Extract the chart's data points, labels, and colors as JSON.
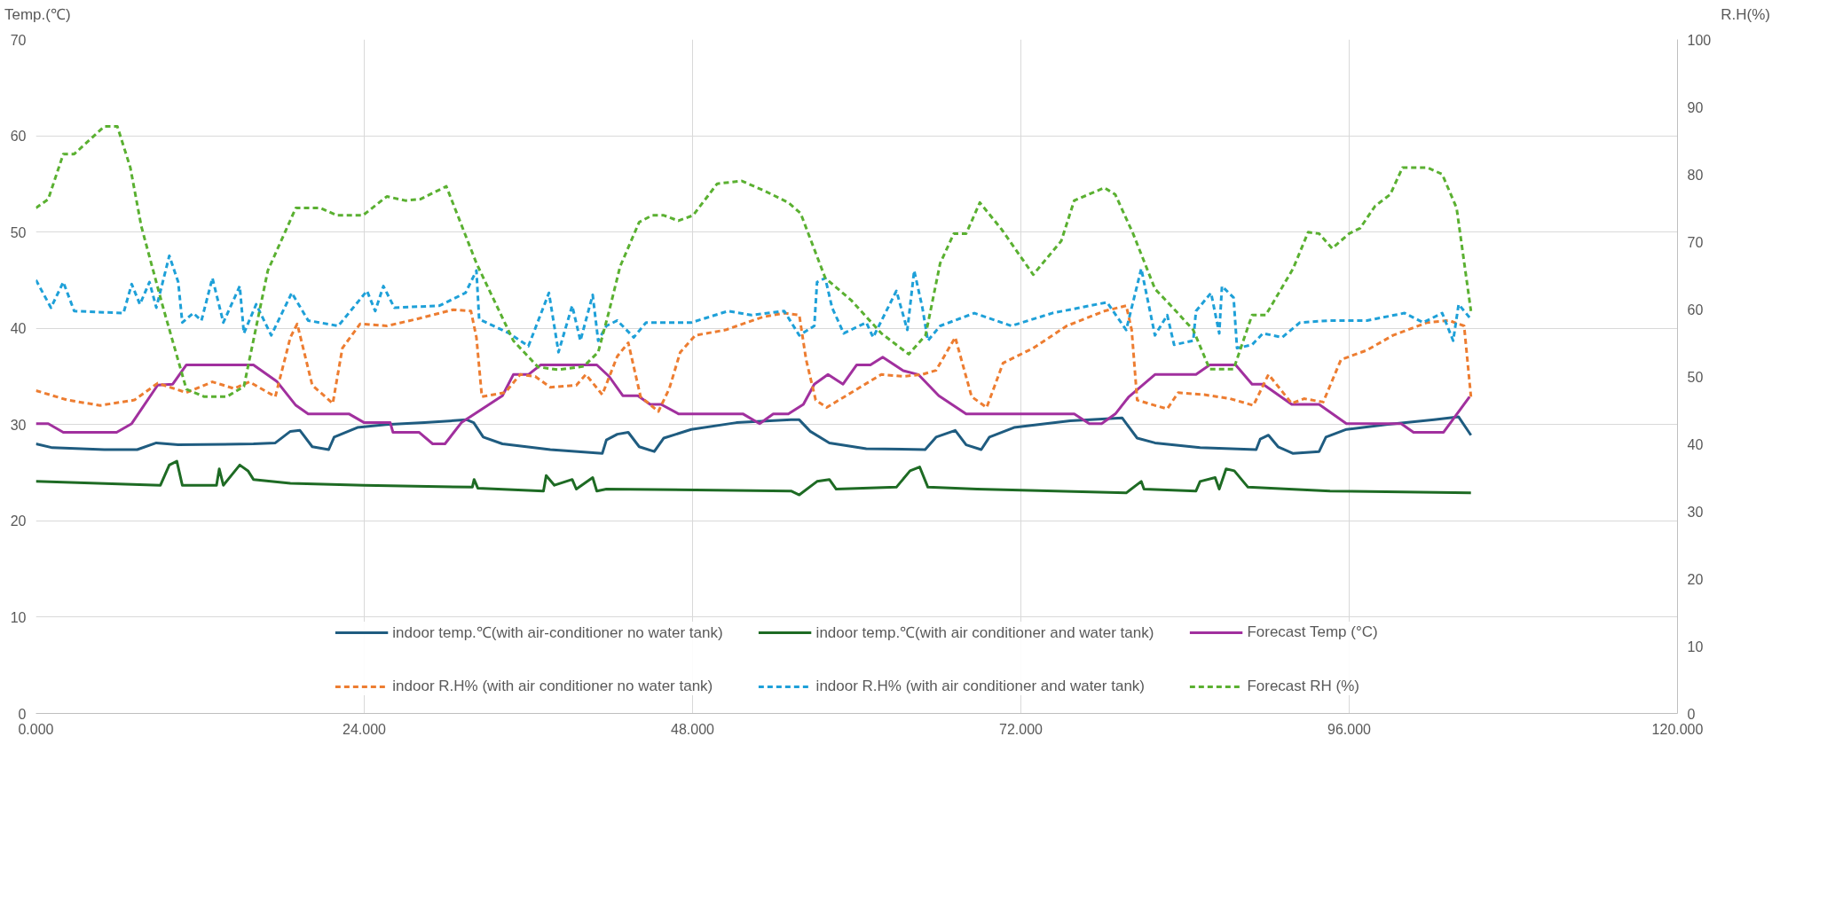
{
  "chart_data": {
    "type": "line",
    "ylabel": "Temp.(℃)",
    "y2label": "R.H(%)",
    "xlim": [
      0,
      120
    ],
    "xticks": [
      {
        "value": 0,
        "label": "0.000"
      },
      {
        "value": 24,
        "label": "24.000"
      },
      {
        "value": 48,
        "label": "48.000"
      },
      {
        "value": 72,
        "label": "72.000"
      },
      {
        "value": 96,
        "label": "96.000"
      },
      {
        "value": 120,
        "label": "120.000"
      }
    ],
    "ylim": [
      0,
      70
    ],
    "yticks": [
      0,
      10,
      20,
      30,
      40,
      50,
      60,
      70
    ],
    "y2lim": [
      0,
      100
    ],
    "y2ticks": [
      0,
      10,
      20,
      30,
      40,
      50,
      60,
      70,
      80,
      90,
      100
    ],
    "grid": true,
    "legend": "bottom",
    "series": [
      {
        "name": "indoor temp.℃(with air-conditioner no water tank)",
        "color": "#1f5c80",
        "line_style": "solid",
        "x": [
          0,
          1.2,
          5.0,
          7.4,
          8.8,
          10.4,
          15.9,
          17.5,
          18.6,
          19.3,
          20.2,
          21.4,
          21.8,
          23.5,
          25.6,
          28.4,
          31.5,
          32.0,
          32.7,
          34.1,
          37.6,
          41.4,
          41.7,
          42.5,
          43.3,
          44.1,
          45.2,
          45.9,
          47.9,
          51.2,
          55.2,
          55.8,
          56.6,
          58.0,
          60.7,
          65.0,
          65.8,
          67.2,
          68.0,
          69.1,
          69.7,
          71.5,
          75.6,
          79.4,
          80.5,
          81.8,
          85.1,
          89.2,
          89.5,
          90.1,
          90.8,
          91.9,
          93.8,
          94.3,
          95.8,
          98.7,
          102.2,
          104.0,
          104.9
        ],
        "values": [
          28.0,
          27.6,
          27.4,
          27.4,
          28.1,
          27.9,
          28.0,
          28.1,
          29.3,
          29.4,
          27.7,
          27.4,
          28.7,
          29.7,
          30.0,
          30.2,
          30.5,
          30.2,
          28.7,
          28.0,
          27.4,
          27.0,
          28.4,
          29.0,
          29.2,
          27.7,
          27.2,
          28.6,
          29.5,
          30.2,
          30.5,
          30.5,
          29.3,
          28.1,
          27.5,
          27.4,
          28.7,
          29.4,
          27.9,
          27.4,
          28.7,
          29.7,
          30.4,
          30.7,
          28.6,
          28.1,
          27.6,
          27.4,
          28.5,
          28.9,
          27.7,
          27.0,
          27.2,
          28.7,
          29.5,
          30.0,
          30.5,
          30.8,
          28.9
        ]
      },
      {
        "name": "indoor temp.℃(with air conditioner and water tank)",
        "color": "#1e6b24",
        "line_style": "solid",
        "x": [
          0,
          9.1,
          9.75,
          10.3,
          10.7,
          13.2,
          13.4,
          13.7,
          14.9,
          15.5,
          15.9,
          18.6,
          24.0,
          31.9,
          32.03,
          32.3,
          37.1,
          37.3,
          37.9,
          39.2,
          39.5,
          40.7,
          41.0,
          41.7,
          55.2,
          55.8,
          57.1,
          58.0,
          58.5,
          62.9,
          63.9,
          64.6,
          65.2,
          68.8,
          79.7,
          80.8,
          81.0,
          84.8,
          85.1,
          86.2,
          86.5,
          87.0,
          87.6,
          88.6,
          94.6,
          104.9
        ],
        "values": [
          24.1,
          23.7,
          25.8,
          26.2,
          23.7,
          23.7,
          25.4,
          23.7,
          25.8,
          25.2,
          24.3,
          23.9,
          23.7,
          23.5,
          24.3,
          23.4,
          23.1,
          24.7,
          23.7,
          24.3,
          23.3,
          24.5,
          23.1,
          23.3,
          23.1,
          22.7,
          24.1,
          24.3,
          23.3,
          23.5,
          25.2,
          25.6,
          23.5,
          23.3,
          22.9,
          24.1,
          23.3,
          23.1,
          24.1,
          24.5,
          23.3,
          25.4,
          25.2,
          23.5,
          23.1,
          22.9
        ]
      },
      {
        "name": "Forecast Temp (°C)",
        "color": "#a1309e",
        "line_style": "solid",
        "x": [
          0,
          0.9,
          2.0,
          5.9,
          7.0,
          8.9,
          10.0,
          11.0,
          15.9,
          17.6,
          19.0,
          19.9,
          22.9,
          24.0,
          25.9,
          26.1,
          28.0,
          29.0,
          29.9,
          31.1,
          34.1,
          34.9,
          36.0,
          36.9,
          41.0,
          41.9,
          42.9,
          44.0,
          44.9,
          45.7,
          47.0,
          51.7,
          52.9,
          53.9,
          55.0,
          56.1,
          56.9,
          57.9,
          59.0,
          60.0,
          61.0,
          61.9,
          63.4,
          64.5,
          66.0,
          68.0,
          75.9,
          77.0,
          77.9,
          78.9,
          79.9,
          81.8,
          84.8,
          85.8,
          87.7,
          88.9,
          89.7,
          91.8,
          93.8,
          95.8,
          99.8,
          100.7,
          102.9,
          104.8
        ],
        "values": [
          30.1,
          30.1,
          29.2,
          29.2,
          30.1,
          34.1,
          34.2,
          36.2,
          36.2,
          34.5,
          32.0,
          31.1,
          31.1,
          30.2,
          30.2,
          29.2,
          29.2,
          28.0,
          28.0,
          30.2,
          33.0,
          35.2,
          35.2,
          36.2,
          36.2,
          35.0,
          33.0,
          33.0,
          32.1,
          32.1,
          31.1,
          31.1,
          30.1,
          31.1,
          31.1,
          32.1,
          34.2,
          35.2,
          34.2,
          36.2,
          36.2,
          37.0,
          35.6,
          35.2,
          33.0,
          31.1,
          31.1,
          30.1,
          30.1,
          31.1,
          32.9,
          35.2,
          35.2,
          36.2,
          36.2,
          34.2,
          34.2,
          32.1,
          32.1,
          30.1,
          30.1,
          29.2,
          29.2,
          32.9
        ]
      },
      {
        "name": "indoor R.H% (with air conditioner no water tank)",
        "color": "#ed7d31",
        "line_style": "dashed",
        "axis": "y2",
        "x": [
          0,
          2.3,
          4.7,
          7.2,
          8.9,
          11.0,
          12.9,
          14.5,
          15.6,
          17.5,
          18.6,
          19.1,
          20.2,
          21.7,
          22.4,
          23.7,
          25.65,
          27.8,
          30.5,
          31.8,
          32.2,
          32.6,
          34.3,
          35.4,
          36.5,
          37.6,
          39.5,
          40.2,
          41.4,
          42.5,
          43.3,
          44.2,
          45.5,
          46.3,
          47.1,
          48.2,
          50.4,
          53.1,
          54.7,
          55.8,
          56.3,
          57.0,
          57.8,
          59.6,
          61.8,
          63.4,
          64.8,
          65.8,
          67.2,
          68.4,
          69.5,
          70.7,
          72.9,
          75.35,
          78.1,
          79.7,
          80.1,
          80.5,
          81.8,
          82.7,
          83.5,
          85.4,
          87.3,
          89.0,
          90.1,
          91.8,
          92.7,
          94.1,
          95.4,
          97.3,
          99.2,
          101.7,
          103.3,
          104.4,
          104.9
        ],
        "values": [
          47.9,
          46.5,
          45.7,
          46.5,
          49.0,
          47.6,
          49.2,
          48.2,
          49.2,
          47.0,
          55.8,
          57.8,
          48.7,
          46.0,
          54.2,
          57.8,
          57.5,
          58.5,
          59.9,
          59.7,
          55.8,
          47.0,
          47.6,
          50.3,
          50.0,
          48.4,
          48.7,
          50.3,
          47.3,
          53.0,
          55.0,
          47.0,
          44.8,
          48.2,
          53.6,
          56.1,
          56.9,
          58.8,
          59.4,
          59.1,
          52.5,
          46.5,
          45.4,
          47.6,
          50.3,
          50.0,
          50.3,
          50.9,
          55.8,
          47.0,
          45.4,
          52.0,
          54.2,
          57.5,
          59.7,
          60.5,
          56.9,
          46.5,
          45.7,
          45.2,
          47.6,
          47.3,
          46.7,
          45.7,
          50.3,
          46.0,
          46.7,
          46.2,
          52.5,
          53.9,
          56.1,
          58.0,
          58.3,
          57.5,
          47.0
        ]
      },
      {
        "name": "indoor R.H% (with air conditioner and water tank)",
        "color": "#1ea0d8",
        "line_style": "dashed",
        "axis": "y2",
        "x": [
          0,
          1.1,
          2.0,
          2.8,
          6.4,
          7.0,
          7.6,
          8.3,
          8.8,
          9.75,
          10.4,
          10.7,
          11.5,
          12.1,
          12.9,
          13.7,
          14.9,
          15.2,
          16.1,
          17.2,
          18.7,
          19.9,
          22.1,
          24.2,
          24.8,
          25.4,
          26.2,
          29.5,
          31.4,
          32.2,
          32.4,
          34.6,
          36.0,
          37.5,
          38.2,
          39.2,
          39.8,
          40.7,
          41.1,
          41.7,
          42.5,
          43.7,
          44.6,
          47.9,
          50.6,
          52.3,
          54.7,
          55.8,
          56.9,
          57.1,
          57.7,
          58.2,
          59.05,
          60.7,
          61.2,
          62.9,
          63.7,
          64.2,
          64.8,
          65.2,
          66.1,
          68.6,
          71.3,
          74.3,
          78.3,
          79.7,
          80.8,
          81.8,
          82.7,
          83.2,
          84.6,
          84.8,
          85.9,
          86.5,
          86.7,
          87.55,
          87.8,
          88.9,
          89.7,
          91.1,
          92.4,
          94.6,
          97.3,
          100.05,
          101.4,
          102.8,
          103.6,
          104.0,
          104.9
        ],
        "values": [
          64.3,
          60.2,
          64.0,
          59.7,
          59.4,
          63.7,
          60.7,
          64.0,
          60.2,
          67.9,
          64.0,
          58.0,
          59.4,
          58.3,
          64.6,
          58.0,
          63.4,
          56.4,
          60.7,
          56.1,
          62.4,
          58.3,
          57.5,
          62.7,
          59.7,
          63.4,
          60.2,
          60.5,
          62.4,
          65.7,
          58.5,
          56.4,
          54.5,
          62.4,
          53.6,
          60.5,
          55.3,
          62.1,
          55.3,
          57.5,
          58.3,
          55.8,
          58.0,
          58.0,
          59.7,
          59.1,
          59.7,
          56.1,
          57.5,
          64.0,
          64.6,
          60.2,
          56.4,
          58.0,
          55.8,
          62.7,
          56.9,
          65.7,
          60.2,
          55.3,
          57.5,
          59.4,
          57.5,
          59.4,
          61.0,
          56.9,
          66.0,
          56.1,
          59.1,
          54.7,
          55.3,
          59.7,
          62.4,
          56.4,
          63.4,
          61.7,
          54.2,
          54.7,
          56.4,
          55.8,
          58.0,
          58.3,
          58.3,
          59.4,
          58.0,
          59.4,
          55.3,
          60.7,
          58.5
        ]
      },
      {
        "name": "Forecast RH (%)",
        "color": "#5ab031",
        "line_style": "dashed",
        "axis": "y2",
        "x": [
          0,
          0.9,
          2.0,
          2.8,
          5.0,
          5.95,
          6.9,
          7.7,
          9.3,
          11.0,
          12.3,
          13.96,
          15.2,
          16.95,
          19.0,
          20.8,
          22.0,
          23.9,
          25.65,
          27.0,
          28.1,
          30.0,
          32.2,
          34.9,
          36.7,
          38.2,
          40.05,
          41.1,
          41.9,
          42.7,
          44.1,
          45.05,
          45.9,
          46.96,
          48.04,
          49.8,
          51.6,
          53.3,
          55.0,
          55.9,
          57.7,
          59.6,
          61.8,
          63.8,
          65.03,
          66.1,
          67.1,
          68.0,
          69.0,
          70.6,
          72.9,
          74.95,
          75.9,
          78.1,
          78.9,
          80.2,
          81.8,
          83.2,
          84.6,
          85.8,
          87.55,
          88.9,
          89.9,
          91.9,
          93.0,
          93.8,
          94.75,
          96.0,
          96.8,
          97.9,
          99.0,
          99.9,
          101.7,
          102.8,
          103.85,
          104.9
        ],
        "values": [
          75.0,
          76.3,
          83.0,
          83.0,
          87.1,
          87.1,
          81.0,
          72.3,
          60.2,
          48.1,
          47.0,
          47.0,
          48.5,
          65.7,
          75.0,
          75.0,
          73.9,
          73.9,
          76.7,
          76.1,
          76.3,
          78.2,
          66.8,
          55.3,
          51.4,
          51.0,
          51.5,
          53.6,
          59.7,
          66.3,
          72.9,
          73.9,
          73.9,
          73.1,
          73.9,
          78.6,
          79.0,
          77.5,
          75.8,
          74.2,
          64.6,
          61.3,
          56.4,
          53.3,
          56.1,
          66.8,
          71.2,
          71.2,
          75.8,
          71.8,
          65.1,
          70.1,
          76.1,
          78.0,
          77.0,
          71.2,
          63.0,
          60.0,
          56.9,
          51.1,
          51.1,
          59.1,
          59.1,
          66.0,
          71.4,
          71.2,
          69.0,
          71.2,
          72.0,
          75.3,
          77.0,
          81.0,
          81.0,
          80.0,
          75.0,
          59.7
        ]
      }
    ]
  }
}
